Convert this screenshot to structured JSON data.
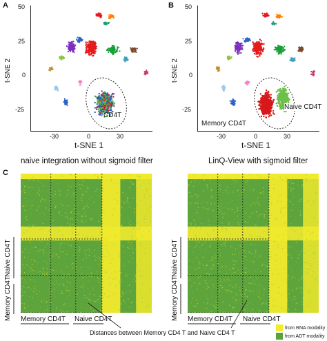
{
  "panels": {
    "a": {
      "letter": "A",
      "ylabel": "t-SNE 2",
      "xlabel": "t-SNE 1",
      "cluster_label": "CD4T",
      "caption": "naive integration without sigmoid filter",
      "x_ticks": [
        "-30",
        "0",
        "30"
      ],
      "y_ticks": [
        "50",
        "25",
        "0",
        "-25"
      ]
    },
    "b": {
      "letter": "B",
      "ylabel": "t-SNE 2",
      "xlabel": "t-SNE 1",
      "label_naive": "Naive CD4T",
      "label_memory": "Memory CD4T",
      "caption": "LinQ-View with sigmoid filter",
      "x_ticks": [
        "-30",
        "0",
        "30"
      ],
      "y_ticks": [
        "50",
        "25",
        "0",
        "-25"
      ]
    },
    "c": {
      "letter": "C",
      "row_label_naive": "Naive CD4T",
      "row_label_memory": "Memory CD4T",
      "col_label_memory": "Memory CD4T",
      "col_label_naive": "Naive CD4T",
      "annotation": "Distances between Memory CD4 T and Naive CD4 T",
      "legend": [
        {
          "label": "from RNA modality",
          "color": "#f2ec2a"
        },
        {
          "label": "from ADT modality",
          "color": "#5aa33a"
        }
      ]
    }
  },
  "colors": {
    "yellow": "#f0ea2c",
    "green": "#5da43c",
    "red": "#d7191c",
    "blue": "#2b63c6",
    "light_green": "#6cc04a"
  }
}
